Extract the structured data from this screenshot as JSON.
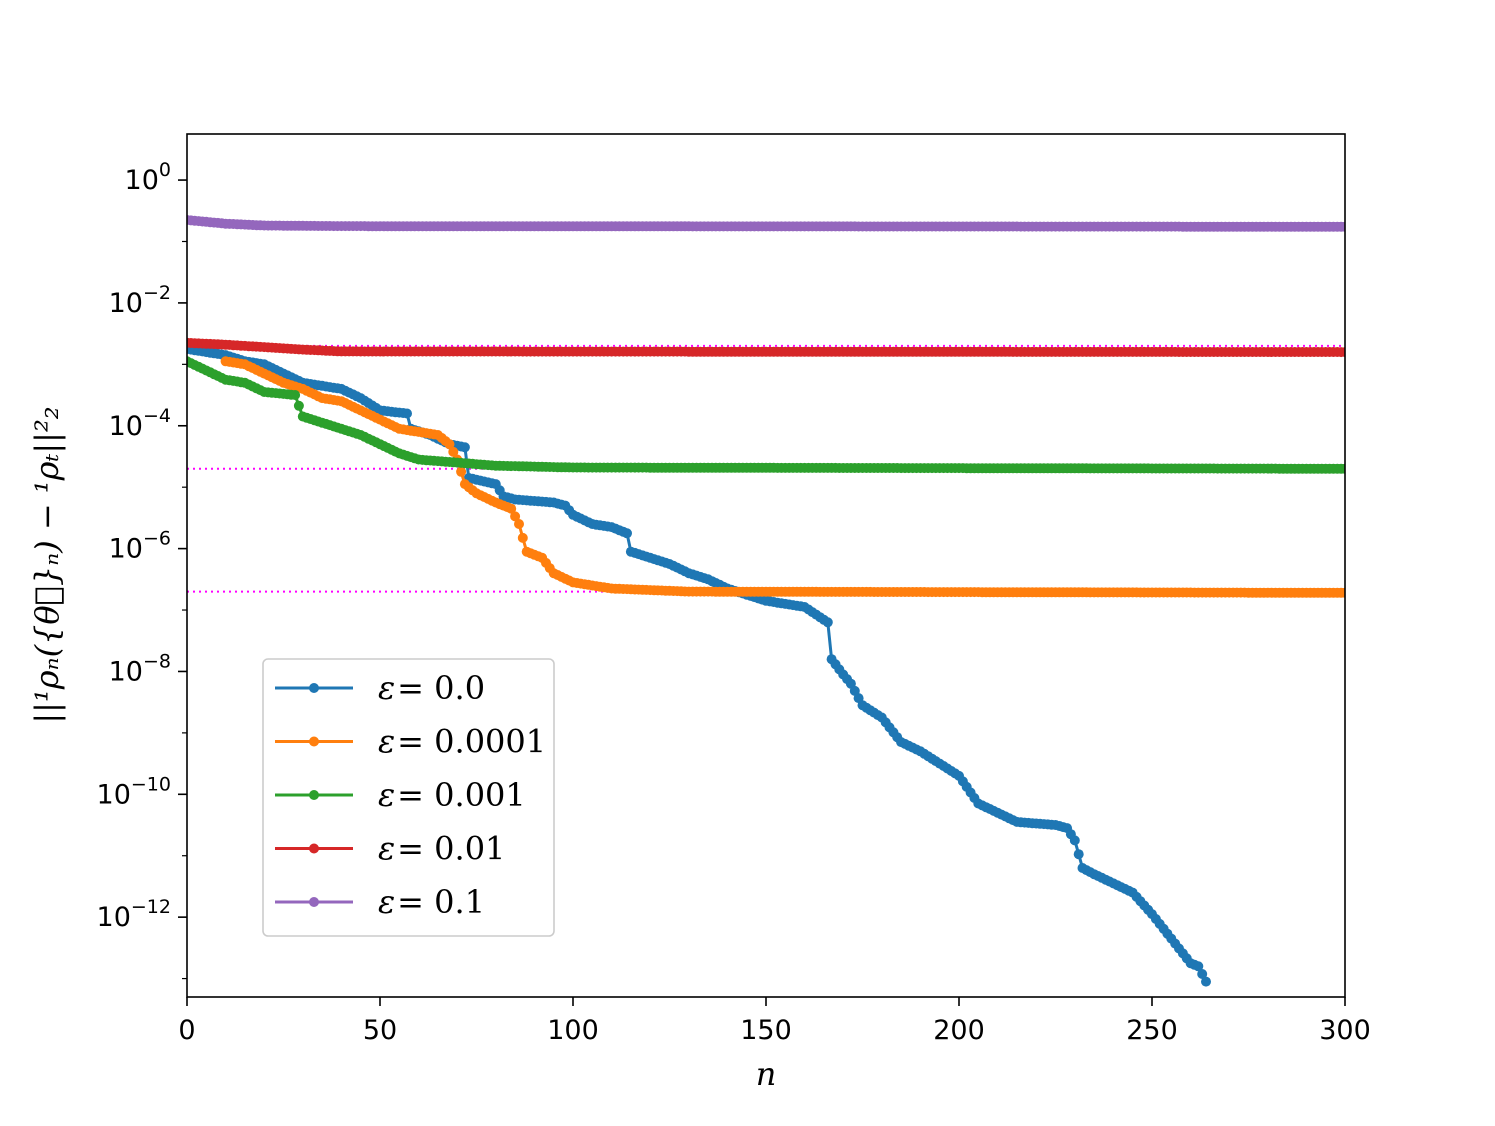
{
  "chart_data": {
    "type": "line",
    "xlabel": "n",
    "ylabel": "||¹ρₙ({θ⃗}ₙ) − ¹ρₜ||²₂",
    "xlim": [
      0,
      300
    ],
    "ylim_log10": [
      -13.3,
      0.75
    ],
    "y_scale": "log",
    "grid": false,
    "legend_position": "lower-left",
    "x_ticks": [
      {
        "value": 0,
        "label": "0"
      },
      {
        "value": 50,
        "label": "50"
      },
      {
        "value": 100,
        "label": "100"
      },
      {
        "value": 150,
        "label": "150"
      },
      {
        "value": 200,
        "label": "200"
      },
      {
        "value": 250,
        "label": "250"
      },
      {
        "value": 300,
        "label": "300"
      }
    ],
    "y_ticks": [
      {
        "log10": 0,
        "base": "10",
        "exp": "0"
      },
      {
        "log10": -2,
        "base": "10",
        "exp": "−2"
      },
      {
        "log10": -4,
        "base": "10",
        "exp": "−4"
      },
      {
        "log10": -6,
        "base": "10",
        "exp": "−6"
      },
      {
        "log10": -8,
        "base": "10",
        "exp": "−8"
      },
      {
        "log10": -10,
        "base": "10",
        "exp": "−10"
      },
      {
        "log10": -12,
        "base": "10",
        "exp": "−12"
      }
    ],
    "reference_lines": {
      "color": "#ff00ff",
      "log10_values": [
        -0.7,
        -2.7,
        -4.7,
        -6.7
      ]
    },
    "series": [
      {
        "name_symbol": "ε",
        "name_value": "= 0.0",
        "color": "#1f77b4",
        "x_end": 264,
        "points_log10": [
          [
            0,
            -2.75
          ],
          [
            10,
            -2.85
          ],
          [
            15,
            -2.95
          ],
          [
            20,
            -3.0
          ],
          [
            25,
            -3.15
          ],
          [
            30,
            -3.3
          ],
          [
            40,
            -3.4
          ],
          [
            45,
            -3.55
          ],
          [
            50,
            -3.75
          ],
          [
            57,
            -3.8
          ],
          [
            58,
            -4.05
          ],
          [
            63,
            -4.15
          ],
          [
            68,
            -4.3
          ],
          [
            72,
            -4.35
          ],
          [
            73,
            -4.85
          ],
          [
            80,
            -4.95
          ],
          [
            82,
            -5.15
          ],
          [
            85,
            -5.2
          ],
          [
            95,
            -5.25
          ],
          [
            98,
            -5.3
          ],
          [
            100,
            -5.45
          ],
          [
            105,
            -5.6
          ],
          [
            110,
            -5.65
          ],
          [
            114,
            -5.75
          ],
          [
            115,
            -6.05
          ],
          [
            120,
            -6.15
          ],
          [
            125,
            -6.25
          ],
          [
            130,
            -6.4
          ],
          [
            135,
            -6.5
          ],
          [
            140,
            -6.65
          ],
          [
            145,
            -6.75
          ],
          [
            150,
            -6.85
          ],
          [
            155,
            -6.9
          ],
          [
            160,
            -6.95
          ],
          [
            166,
            -7.2
          ],
          [
            167,
            -7.8
          ],
          [
            170,
            -8.05
          ],
          [
            172,
            -8.2
          ],
          [
            175,
            -8.55
          ],
          [
            180,
            -8.75
          ],
          [
            185,
            -9.15
          ],
          [
            190,
            -9.3
          ],
          [
            195,
            -9.5
          ],
          [
            200,
            -9.7
          ],
          [
            205,
            -10.15
          ],
          [
            210,
            -10.3
          ],
          [
            215,
            -10.45
          ],
          [
            225,
            -10.5
          ],
          [
            228,
            -10.55
          ],
          [
            230,
            -10.75
          ],
          [
            232,
            -11.2
          ],
          [
            235,
            -11.3
          ],
          [
            240,
            -11.45
          ],
          [
            245,
            -11.6
          ],
          [
            250,
            -11.95
          ],
          [
            255,
            -12.35
          ],
          [
            260,
            -12.75
          ],
          [
            262,
            -12.8
          ],
          [
            264,
            -13.05
          ]
        ]
      },
      {
        "name_symbol": "ε",
        "name_value": "= 0.0001",
        "color": "#ff7f0e",
        "x_end": 300,
        "points_log10": [
          [
            10,
            -2.95
          ],
          [
            15,
            -3.0
          ],
          [
            20,
            -3.15
          ],
          [
            25,
            -3.3
          ],
          [
            30,
            -3.4
          ],
          [
            35,
            -3.55
          ],
          [
            40,
            -3.6
          ],
          [
            45,
            -3.75
          ],
          [
            50,
            -3.9
          ],
          [
            55,
            -4.05
          ],
          [
            60,
            -4.1
          ],
          [
            65,
            -4.15
          ],
          [
            68,
            -4.3
          ],
          [
            70,
            -4.55
          ],
          [
            72,
            -4.95
          ],
          [
            75,
            -5.1
          ],
          [
            80,
            -5.25
          ],
          [
            84,
            -5.35
          ],
          [
            86,
            -5.6
          ],
          [
            88,
            -6.05
          ],
          [
            92,
            -6.15
          ],
          [
            95,
            -6.4
          ],
          [
            100,
            -6.55
          ],
          [
            110,
            -6.65
          ],
          [
            130,
            -6.7
          ],
          [
            300,
            -6.72
          ]
        ]
      },
      {
        "name_symbol": "ε",
        "name_value": "= 0.001",
        "color": "#2ca02c",
        "x_end": 300,
        "points_log10": [
          [
            0,
            -2.95
          ],
          [
            5,
            -3.1
          ],
          [
            10,
            -3.25
          ],
          [
            15,
            -3.3
          ],
          [
            20,
            -3.45
          ],
          [
            28,
            -3.5
          ],
          [
            30,
            -3.85
          ],
          [
            35,
            -3.95
          ],
          [
            40,
            -4.05
          ],
          [
            45,
            -4.15
          ],
          [
            50,
            -4.3
          ],
          [
            55,
            -4.45
          ],
          [
            60,
            -4.55
          ],
          [
            70,
            -4.6
          ],
          [
            80,
            -4.65
          ],
          [
            100,
            -4.68
          ],
          [
            300,
            -4.7
          ]
        ]
      },
      {
        "name_symbol": "ε",
        "name_value": "= 0.01",
        "color": "#d62728",
        "x_end": 300,
        "points_log10": [
          [
            0,
            -2.65
          ],
          [
            10,
            -2.68
          ],
          [
            20,
            -2.72
          ],
          [
            30,
            -2.76
          ],
          [
            40,
            -2.79
          ],
          [
            300,
            -2.8
          ]
        ]
      },
      {
        "name_symbol": "ε",
        "name_value": "= 0.1",
        "color": "#9467bd",
        "x_end": 300,
        "points_log10": [
          [
            0,
            -0.65
          ],
          [
            5,
            -0.68
          ],
          [
            10,
            -0.71
          ],
          [
            20,
            -0.74
          ],
          [
            40,
            -0.75
          ],
          [
            300,
            -0.76
          ]
        ]
      }
    ]
  }
}
